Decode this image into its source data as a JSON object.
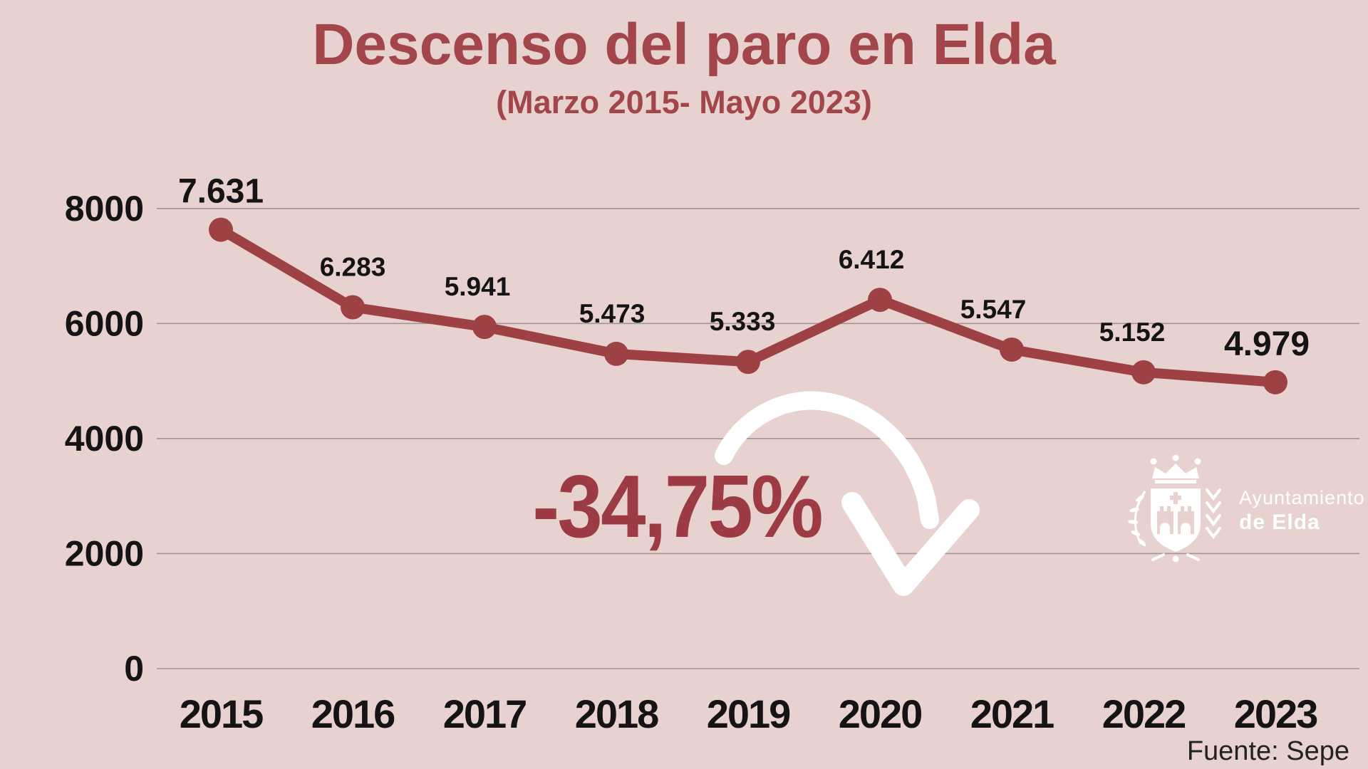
{
  "page": {
    "background_color": "#e7d2d0"
  },
  "header": {
    "title": "Descenso del paro en Elda",
    "subtitle": "(Marzo 2015- Mayo 2023)",
    "title_color": "#a2464b"
  },
  "annotation": {
    "percent": "-34,75%",
    "color": "#9c3b43"
  },
  "logo": {
    "line1": "Ayuntamiento",
    "line2": "de Elda"
  },
  "source": {
    "text": "Fuente: Sepe"
  },
  "chart_data": {
    "type": "line",
    "title": "Descenso del paro en Elda",
    "subtitle": "(Marzo 2015- Mayo 2023)",
    "categories": [
      "2015",
      "2016",
      "2017",
      "2018",
      "2019",
      "2020",
      "2021",
      "2022",
      "2023"
    ],
    "values": [
      7631,
      6283,
      5941,
      5473,
      5333,
      6412,
      5547,
      5152,
      4979
    ],
    "value_labels": [
      "7.631",
      "6.283",
      "5.941",
      "5.473",
      "5.333",
      "6.412",
      "5.547",
      "5.152",
      "4.979"
    ],
    "emphasized_labels": [
      "7.631",
      "4.979"
    ],
    "yticks": [
      0,
      2000,
      4000,
      6000,
      8000
    ],
    "ytick_labels": [
      "0",
      "2000",
      "4000",
      "6000",
      "8000"
    ],
    "ylim": [
      0,
      8000
    ],
    "xlabel": "",
    "ylabel": "",
    "grid": true,
    "legend": "none",
    "line_color": "#9d4144",
    "marker_color": "#9d4144",
    "data_label_color": "#141414",
    "grid_color": "#a39394",
    "annotation": "-34,75%",
    "source": "Fuente: Sepe"
  }
}
